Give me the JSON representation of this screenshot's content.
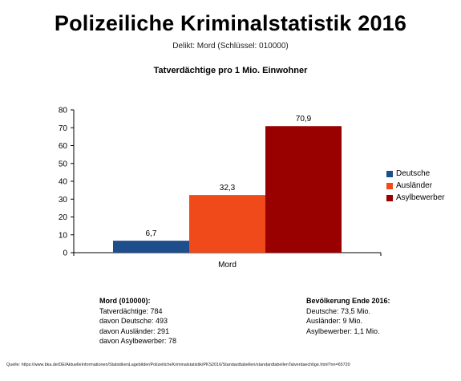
{
  "header": {
    "title": "Polizeiliche Kriminalstatistik 2016",
    "subtitle": "Delikt: Mord (Schlüssel: 010000)"
  },
  "chart_data": {
    "type": "bar",
    "title": "Tatverdächtige pro 1 Mio. Einwohner",
    "categories": [
      "Mord"
    ],
    "series": [
      {
        "name": "Deutsche",
        "values": [
          6.7
        ],
        "label": "6,7",
        "color": "#1f4e8c"
      },
      {
        "name": "Ausländer",
        "values": [
          32.3
        ],
        "label": "32,3",
        "color": "#f04a1a"
      },
      {
        "name": "Asylbewerber",
        "values": [
          70.9
        ],
        "label": "70,9",
        "color": "#990000"
      }
    ],
    "ylim": [
      0,
      80
    ],
    "yticks": [
      "0",
      "10",
      "20",
      "30",
      "40",
      "50",
      "60",
      "70",
      "80"
    ],
    "grid": false,
    "legend": "right"
  },
  "info_left": {
    "heading": "Mord (010000):",
    "lines": [
      "Tatverdächtige: 784",
      "davon Deutsche: 493",
      "davon Ausländer: 291",
      "davon Asylbewerber: 78"
    ]
  },
  "info_right": {
    "heading": "Bevölkerung Ende 2016:",
    "lines": [
      "Deutsche: 73,5 Mio.",
      "Ausländer: 9 Mio.",
      "Asylbewerber: 1,1 Mio."
    ]
  },
  "source": "Quelle: https://www.bka.de/DE/AktuelleInformationen/StatistikenLagebilder/PolizeilicheKriminalstatistik/PKS2016/Standardtabellen/standardtabellenTatverdaechtige.html?nn=65720"
}
